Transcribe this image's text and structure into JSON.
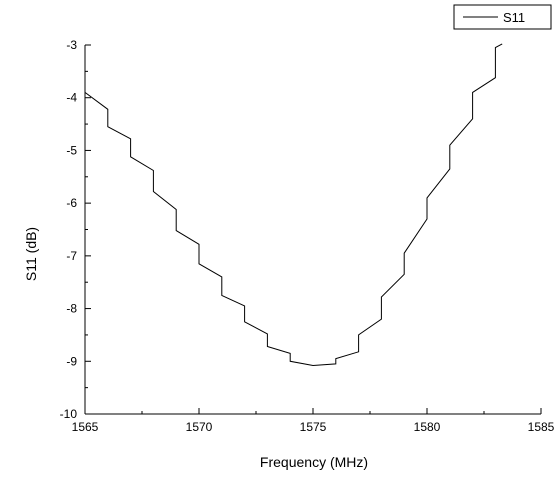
{
  "chart_data": {
    "type": "line",
    "title": "",
    "xlabel": "Frequency (MHz)",
    "ylabel": "S11 (dB)",
    "xlim": [
      1565,
      1585
    ],
    "ylim": [
      -10,
      -3
    ],
    "x_ticks": [
      "1565",
      "1570",
      "1575",
      "1580",
      "1585"
    ],
    "y_ticks": [
      "-10",
      "-9",
      "-8",
      "-7",
      "-6",
      "-5",
      "-4",
      "-3"
    ],
    "grid": false,
    "legend": {
      "position": "top-right",
      "entries": [
        "S11"
      ]
    },
    "series": [
      {
        "name": "S11",
        "color": "#000000",
        "x": [
          1565,
          1566,
          1566,
          1567,
          1567,
          1568,
          1568,
          1569,
          1569,
          1570,
          1570,
          1571,
          1571,
          1572,
          1572,
          1573,
          1573,
          1574,
          1574,
          1575,
          1576,
          1576,
          1577,
          1577,
          1578,
          1578,
          1579,
          1579,
          1580,
          1580,
          1581,
          1581,
          1582,
          1582,
          1583,
          1583,
          1583.3
        ],
        "y": [
          -3.9,
          -4.22,
          -4.55,
          -4.78,
          -5.12,
          -5.38,
          -5.78,
          -6.12,
          -6.52,
          -6.78,
          -7.15,
          -7.4,
          -7.75,
          -7.95,
          -8.25,
          -8.48,
          -8.72,
          -8.85,
          -9.0,
          -9.08,
          -9.05,
          -8.95,
          -8.82,
          -8.5,
          -8.2,
          -7.78,
          -7.35,
          -6.95,
          -6.3,
          -5.9,
          -5.35,
          -4.9,
          -4.4,
          -3.9,
          -3.62,
          -3.05,
          -2.98
        ]
      }
    ]
  }
}
